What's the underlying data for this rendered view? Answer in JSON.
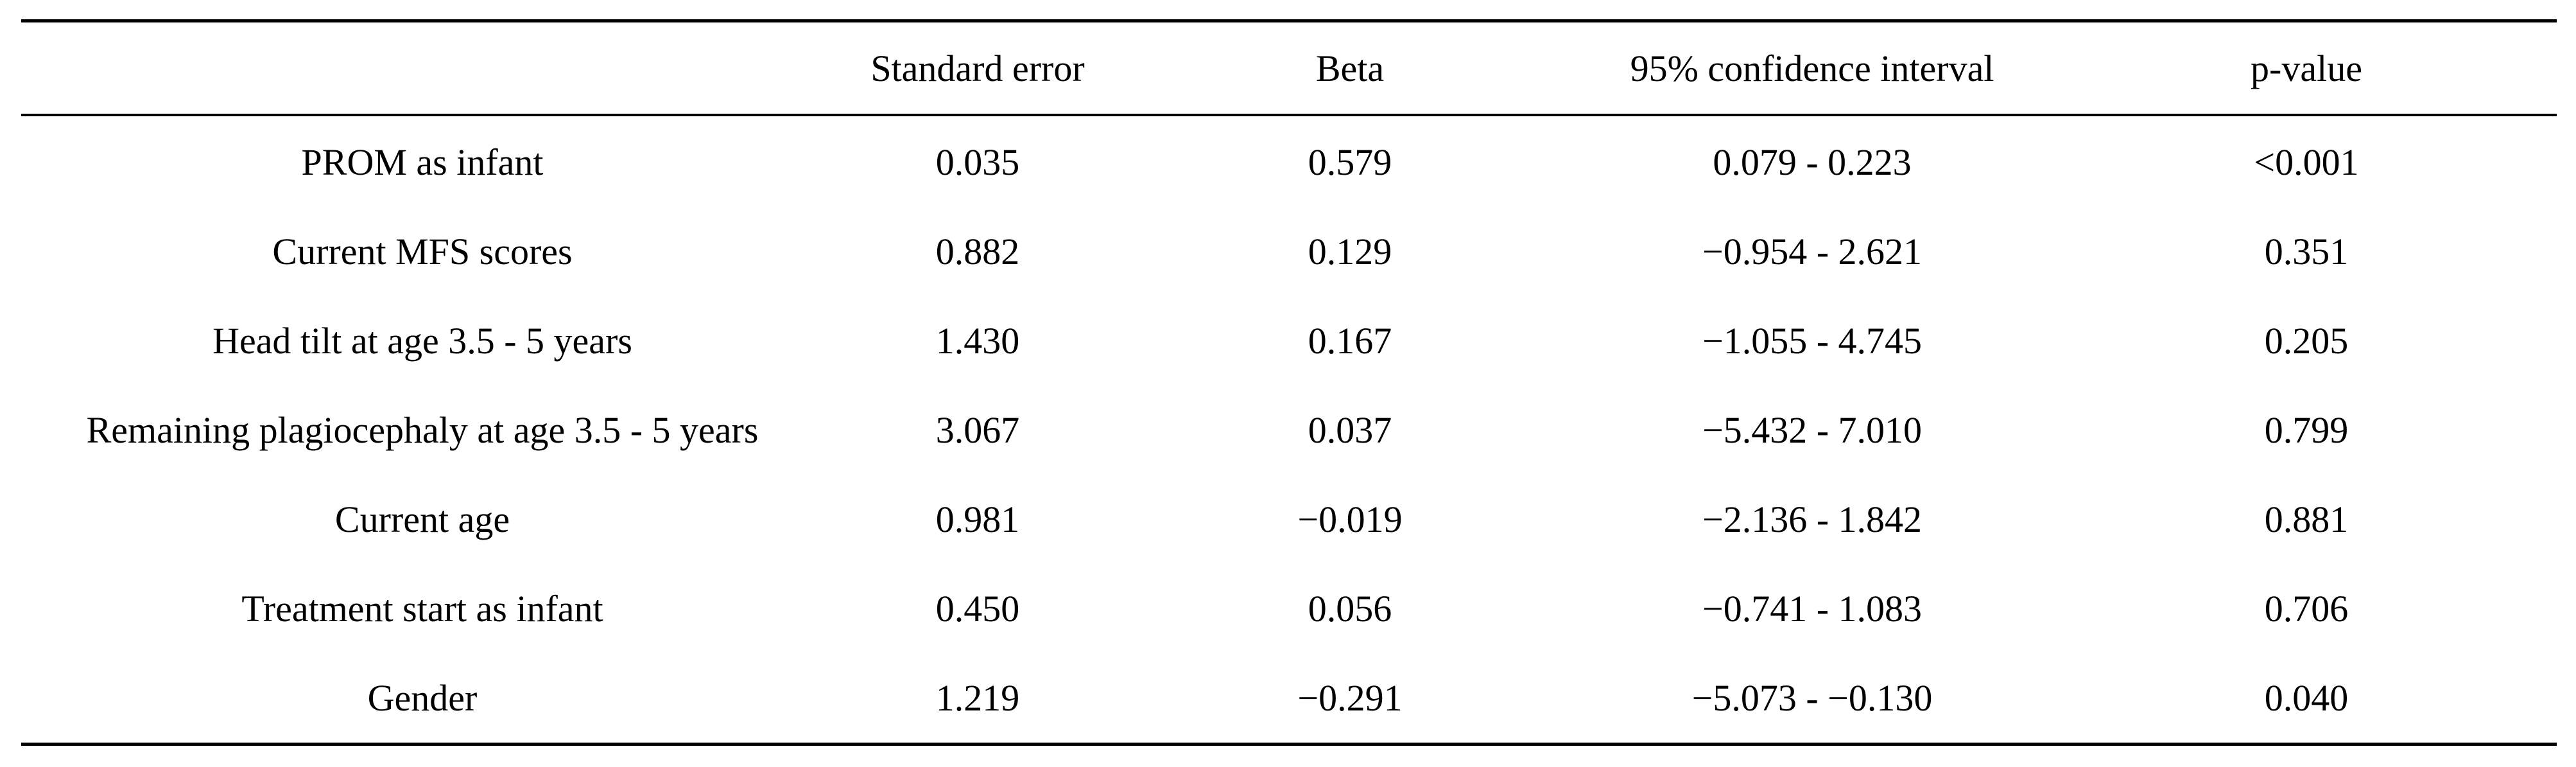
{
  "table": {
    "headers": [
      "",
      "Standard error",
      "Beta",
      "95% confidence interval",
      "p-value"
    ],
    "rows": [
      [
        "PROM as infant",
        "0.035",
        "0.579",
        "0.079 - 0.223",
        "<0.001"
      ],
      [
        "Current MFS scores",
        "0.882",
        "0.129",
        "−0.954 - 2.621",
        "0.351"
      ],
      [
        "Head tilt at age 3.5 - 5 years",
        "1.430",
        "0.167",
        "−1.055 - 4.745",
        "0.205"
      ],
      [
        "Remaining plagiocephaly at age 3.5 - 5 years",
        "3.067",
        "0.037",
        "−5.432 - 7.010",
        "0.799"
      ],
      [
        "Current age",
        "0.981",
        "−0.019",
        "−2.136 - 1.842",
        "0.881"
      ],
      [
        "Treatment start as infant",
        "0.450",
        "0.056",
        "−0.741 - 1.083",
        "0.706"
      ],
      [
        "Gender",
        "1.219",
        "−0.291",
        "−5.073 - −0.130",
        "0.040"
      ]
    ]
  }
}
